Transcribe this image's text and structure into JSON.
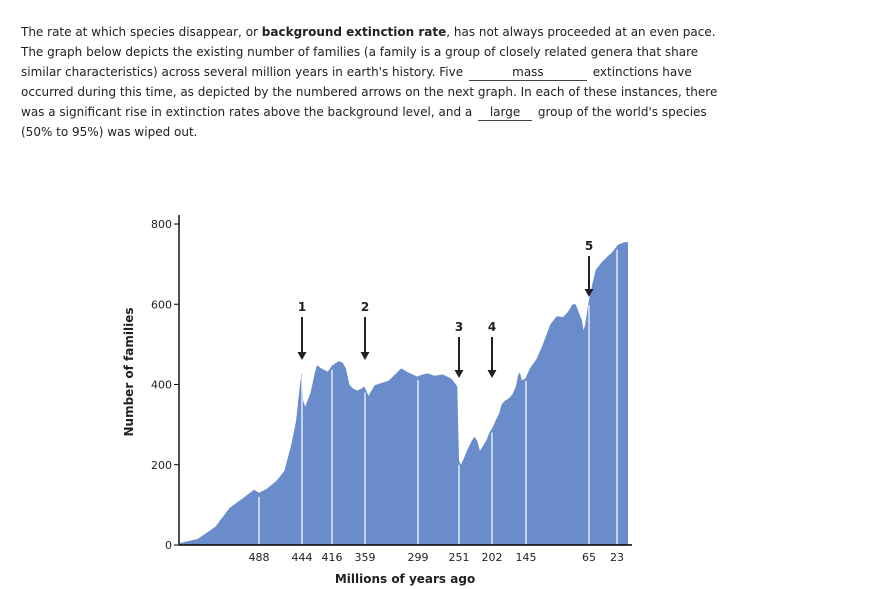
{
  "passage": {
    "s1": "The rate at which species disappear, or ",
    "bold": "background extinction rate",
    "s2": ", has not always proceeded at an even pace. The graph below depicts the existing number of families (a family is a group of closely related genera that share similar characteristics) across several million years in earth's history. Five",
    "blank1": "mass",
    "s3": "extinctions have occurred during this time, as depicted by the numbered arrows on the next graph. In each of these instances, there was a significant rise in extinction rates above the background level, and a",
    "blank2": "large",
    "s4": "group of the world's species (50% to 95%) was wiped out."
  },
  "chart_data": {
    "type": "area",
    "title": "",
    "xlabel": "Millions of years ago",
    "ylabel": "Number of families",
    "ylim": [
      0,
      800
    ],
    "yticks": [
      0,
      200,
      400,
      600,
      800
    ],
    "xticks": [
      "488",
      "444",
      "416",
      "359",
      "299",
      "251",
      "202",
      "145",
      "65",
      "23"
    ],
    "grid": false,
    "fill_color": "#6a8ccb",
    "series_approx": [
      [
        600,
        5
      ],
      [
        575,
        15
      ],
      [
        550,
        45
      ],
      [
        530,
        92
      ],
      [
        510,
        118
      ],
      [
        495,
        138
      ],
      [
        488,
        130
      ],
      [
        480,
        140
      ],
      [
        470,
        160
      ],
      [
        462,
        185
      ],
      [
        455,
        250
      ],
      [
        450,
        310
      ],
      [
        446,
        400
      ],
      [
        444,
        430
      ],
      [
        443,
        360
      ],
      [
        441,
        345
      ],
      [
        436,
        380
      ],
      [
        432,
        430
      ],
      [
        430,
        448
      ],
      [
        426,
        440
      ],
      [
        420,
        432
      ],
      [
        416,
        447
      ],
      [
        405,
        458
      ],
      [
        398,
        455
      ],
      [
        392,
        440
      ],
      [
        386,
        400
      ],
      [
        380,
        390
      ],
      [
        372,
        385
      ],
      [
        365,
        390
      ],
      [
        360,
        395
      ],
      [
        355,
        372
      ],
      [
        348,
        398
      ],
      [
        340,
        404
      ],
      [
        332,
        410
      ],
      [
        325,
        425
      ],
      [
        318,
        440
      ],
      [
        310,
        430
      ],
      [
        300,
        420
      ],
      [
        296,
        423
      ],
      [
        288,
        428
      ],
      [
        280,
        422
      ],
      [
        270,
        425
      ],
      [
        260,
        415
      ],
      [
        253,
        395
      ],
      [
        251,
        210
      ],
      [
        248,
        200
      ],
      [
        244,
        215
      ],
      [
        238,
        240
      ],
      [
        232,
        260
      ],
      [
        228,
        270
      ],
      [
        224,
        260
      ],
      [
        220,
        235
      ],
      [
        216,
        245
      ],
      [
        210,
        262
      ],
      [
        206,
        280
      ],
      [
        202,
        290
      ],
      [
        196,
        310
      ],
      [
        190,
        328
      ],
      [
        186,
        350
      ],
      [
        180,
        360
      ],
      [
        174,
        365
      ],
      [
        168,
        375
      ],
      [
        162,
        395
      ],
      [
        158,
        425
      ],
      [
        155,
        430
      ],
      [
        152,
        410
      ],
      [
        146,
        415
      ],
      [
        140,
        440
      ],
      [
        132,
        462
      ],
      [
        124,
        498
      ],
      [
        114,
        550
      ],
      [
        106,
        570
      ],
      [
        98,
        568
      ],
      [
        92,
        580
      ],
      [
        86,
        600
      ],
      [
        82,
        600
      ],
      [
        78,
        580
      ],
      [
        74,
        560
      ],
      [
        72,
        535
      ],
      [
        70,
        548
      ],
      [
        66,
        600
      ],
      [
        60,
        650
      ],
      [
        55,
        685
      ],
      [
        46,
        705
      ],
      [
        38,
        718
      ],
      [
        30,
        730
      ],
      [
        22,
        748
      ],
      [
        14,
        755
      ]
    ],
    "extinctions": [
      {
        "label": "1",
        "mya": 444
      },
      {
        "label": "2",
        "mya": 359
      },
      {
        "label": "3",
        "mya": 251
      },
      {
        "label": "4",
        "mya": 202
      },
      {
        "label": "5",
        "mya": 65
      }
    ]
  }
}
